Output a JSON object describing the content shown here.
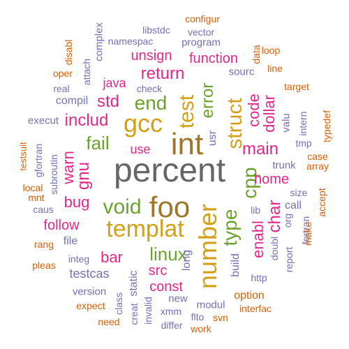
{
  "palette": {
    "gray": "#666666",
    "gold": "#D4A017",
    "olive": "#A0762A",
    "magenta": "#E0288A",
    "green": "#6BA32E",
    "purple": "#7570B3",
    "orange": "#D95F02"
  },
  "words": [
    {
      "text": "percent",
      "color": "gray"
    },
    {
      "text": "int",
      "color": "olive"
    },
    {
      "text": "foo",
      "color": "olive"
    },
    {
      "text": "gcc",
      "color": "gold"
    },
    {
      "text": "templat",
      "color": "gold"
    },
    {
      "text": "number",
      "color": "gold"
    },
    {
      "text": "test",
      "color": "gold"
    },
    {
      "text": "struct",
      "color": "gold"
    },
    {
      "text": "void",
      "color": "green"
    },
    {
      "text": "linux",
      "color": "green"
    },
    {
      "text": "type",
      "color": "green"
    },
    {
      "text": "cpp",
      "color": "green"
    },
    {
      "text": "end",
      "color": "green"
    },
    {
      "text": "error",
      "color": "green"
    },
    {
      "text": "fail",
      "color": "green"
    },
    {
      "text": "code",
      "color": "magenta"
    },
    {
      "text": "return",
      "color": "magenta"
    },
    {
      "text": "includ",
      "color": "magenta"
    },
    {
      "text": "std",
      "color": "magenta"
    },
    {
      "text": "main",
      "color": "magenta"
    },
    {
      "text": "dollar",
      "color": "magenta"
    },
    {
      "text": "enabl",
      "color": "magenta"
    },
    {
      "text": "char",
      "color": "magenta"
    },
    {
      "text": "bug",
      "color": "magenta"
    },
    {
      "text": "gnu",
      "color": "magenta"
    },
    {
      "text": "warn",
      "color": "magenta"
    },
    {
      "text": "bar",
      "color": "magenta"
    },
    {
      "text": "follow",
      "color": "magenta"
    },
    {
      "text": "src",
      "color": "magenta"
    },
    {
      "text": "const",
      "color": "magenta"
    },
    {
      "text": "function",
      "color": "magenta"
    },
    {
      "text": "unsign",
      "color": "magenta"
    },
    {
      "text": "home",
      "color": "magenta"
    },
    {
      "text": "use",
      "color": "magenta"
    },
    {
      "text": "java",
      "color": "magenta"
    },
    {
      "text": "usr",
      "color": "purple"
    },
    {
      "text": "program",
      "color": "purple"
    },
    {
      "text": "namespac",
      "color": "purple"
    },
    {
      "text": "libstdc",
      "color": "purple"
    },
    {
      "text": "vector",
      "color": "purple"
    },
    {
      "text": "complex",
      "color": "purple"
    },
    {
      "text": "attach",
      "color": "purple"
    },
    {
      "text": "real",
      "color": "purple"
    },
    {
      "text": "check",
      "color": "purple"
    },
    {
      "text": "compil",
      "color": "purple"
    },
    {
      "text": "execut",
      "color": "purple"
    },
    {
      "text": "gfortran",
      "color": "purple"
    },
    {
      "text": "subroutin",
      "color": "purple"
    },
    {
      "text": "caus",
      "color": "purple"
    },
    {
      "text": "file",
      "color": "purple"
    },
    {
      "text": "integ",
      "color": "purple"
    },
    {
      "text": "testcas",
      "color": "purple"
    },
    {
      "text": "version",
      "color": "purple"
    },
    {
      "text": "static",
      "color": "purple"
    },
    {
      "text": "class",
      "color": "purple"
    },
    {
      "text": "creat",
      "color": "purple"
    },
    {
      "text": "invalid",
      "color": "purple"
    },
    {
      "text": "xmm",
      "color": "purple"
    },
    {
      "text": "new",
      "color": "purple"
    },
    {
      "text": "long",
      "color": "purple"
    },
    {
      "text": "build",
      "color": "purple"
    },
    {
      "text": "modul",
      "color": "purple"
    },
    {
      "text": "flto",
      "color": "purple"
    },
    {
      "text": "differ",
      "color": "purple"
    },
    {
      "text": "http",
      "color": "purple"
    },
    {
      "text": "doubl",
      "color": "purple"
    },
    {
      "text": "lib",
      "color": "purple"
    },
    {
      "text": "report",
      "color": "purple"
    },
    {
      "text": "org",
      "color": "purple"
    },
    {
      "text": "call",
      "color": "purple"
    },
    {
      "text": "size",
      "color": "purple"
    },
    {
      "text": "trunk",
      "color": "purple"
    },
    {
      "text": "tmp",
      "color": "purple"
    },
    {
      "text": "intern",
      "color": "purple"
    },
    {
      "text": "valu",
      "color": "purple"
    },
    {
      "text": "fortran",
      "color": "purple"
    },
    {
      "text": "sourc",
      "color": "purple"
    },
    {
      "text": "configur",
      "color": "orange"
    },
    {
      "text": "loop",
      "color": "orange"
    },
    {
      "text": "data",
      "color": "orange"
    },
    {
      "text": "line",
      "color": "orange"
    },
    {
      "text": "target",
      "color": "orange"
    },
    {
      "text": "typedef",
      "color": "orange"
    },
    {
      "text": "case",
      "color": "orange"
    },
    {
      "text": "array",
      "color": "orange"
    },
    {
      "text": "accept",
      "color": "orange"
    },
    {
      "text": "make",
      "color": "orange"
    },
    {
      "text": "option",
      "color": "orange"
    },
    {
      "text": "interfac",
      "color": "orange"
    },
    {
      "text": "svn",
      "color": "orange"
    },
    {
      "text": "work",
      "color": "orange"
    },
    {
      "text": "expect",
      "color": "orange"
    },
    {
      "text": "need",
      "color": "orange"
    },
    {
      "text": "pleas",
      "color": "orange"
    },
    {
      "text": "rang",
      "color": "orange"
    },
    {
      "text": "mnt",
      "color": "orange"
    },
    {
      "text": "local",
      "color": "orange"
    },
    {
      "text": "testsuit",
      "color": "orange"
    },
    {
      "text": "oper",
      "color": "orange"
    },
    {
      "text": "disabl",
      "color": "orange"
    }
  ]
}
